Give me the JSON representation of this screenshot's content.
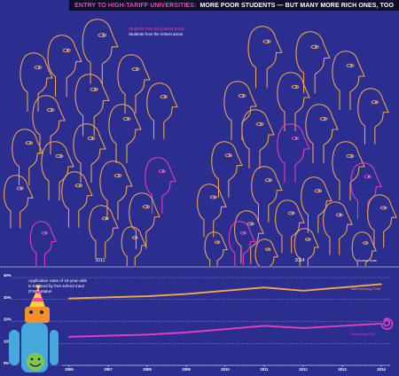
{
  "title": {
    "accent": "ENTRY TO HIGH-TARIFF UNIVERSITIES:",
    "main": "MORE POOR STUDENTS — BUT MANY MORE RICH ONES, TOO"
  },
  "legend": {
    "poorest": "Students from the poorest areas",
    "richest": "Students from the richest areas"
  },
  "panels": [
    {
      "year": "2011",
      "richest_heads": 17,
      "poorest_heads": 2
    },
    {
      "year": "2014",
      "richest_heads": 21,
      "poorest_heads": 3
    }
  ],
  "source": "Source: Ucas",
  "colors": {
    "background": "#2b2e8e",
    "richest": "#f4a74d",
    "poorest": "#e63fbd",
    "non_fsm_line": "#f4a74d",
    "fsm_line": "#e63fbd"
  },
  "chart_data": {
    "type": "line",
    "title_lines": [
      "Application rates of 18-year-olds",
      "in England by free school meal",
      "(FSM) status"
    ],
    "x": [
      "2006",
      "2007",
      "2008",
      "2009",
      "2010",
      "2011",
      "2012",
      "2013",
      "2014"
    ],
    "ylim": [
      0,
      40
    ],
    "yticks": [
      "0%",
      "10%",
      "20%",
      "30%",
      "40%"
    ],
    "grid": true,
    "series": [
      {
        "name": "Not receiving FSM",
        "values": [
          30.5,
          31.0,
          31.5,
          32.5,
          34.0,
          35.5,
          34.0,
          35.5,
          37.0
        ]
      },
      {
        "name": "Receiving FSM",
        "values": [
          13.0,
          13.5,
          14.0,
          15.0,
          16.5,
          18.0,
          17.0,
          18.0,
          19.0
        ]
      }
    ]
  }
}
